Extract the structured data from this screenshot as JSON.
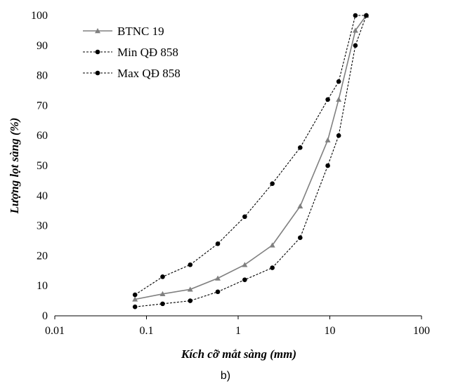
{
  "chart_data": {
    "type": "line",
    "x_scale": "log",
    "xlabel": "Kích cỡ mắt sàng (mm)",
    "ylabel": "Lượng lọt sàng (%)",
    "xlim": [
      0.01,
      100
    ],
    "ylim": [
      0,
      100
    ],
    "x_ticks": [
      0.01,
      0.1,
      1,
      10,
      100
    ],
    "x_tick_labels": [
      "0.01",
      "0.1",
      "1",
      "10",
      "100"
    ],
    "y_ticks": [
      0,
      10,
      20,
      30,
      40,
      50,
      60,
      70,
      80,
      90,
      100
    ],
    "y_tick_labels": [
      "0",
      "10",
      "20",
      "30",
      "40",
      "50",
      "60",
      "70",
      "80",
      "90",
      "100"
    ],
    "grid": false,
    "legend_position": "top-left",
    "caption": "b)",
    "series": [
      {
        "name": "BTNC 19",
        "color": "#808080",
        "line_style": "solid",
        "marker": "triangle",
        "x": [
          0.075,
          0.15,
          0.3,
          0.6,
          1.18,
          2.36,
          4.75,
          9.5,
          12.5,
          19,
          25
        ],
        "y": [
          5.5,
          7.3,
          8.8,
          12.5,
          17,
          23.5,
          36.5,
          58.5,
          72,
          95,
          100
        ]
      },
      {
        "name": "Min QĐ 858",
        "color": "#000000",
        "line_style": "dashed",
        "marker": "circle",
        "x": [
          0.075,
          0.15,
          0.3,
          0.6,
          1.18,
          2.36,
          4.75,
          9.5,
          12.5,
          19,
          25
        ],
        "y": [
          3,
          4,
          5,
          8,
          12,
          16,
          26,
          50,
          60,
          90,
          100
        ]
      },
      {
        "name": "Max QĐ 858",
        "color": "#000000",
        "line_style": "dashed",
        "marker": "circle",
        "x": [
          0.075,
          0.15,
          0.3,
          0.6,
          1.18,
          2.36,
          4.75,
          9.5,
          12.5,
          19,
          25
        ],
        "y": [
          7,
          13,
          17,
          24,
          33,
          44,
          56,
          72,
          78,
          100,
          100
        ]
      }
    ]
  }
}
